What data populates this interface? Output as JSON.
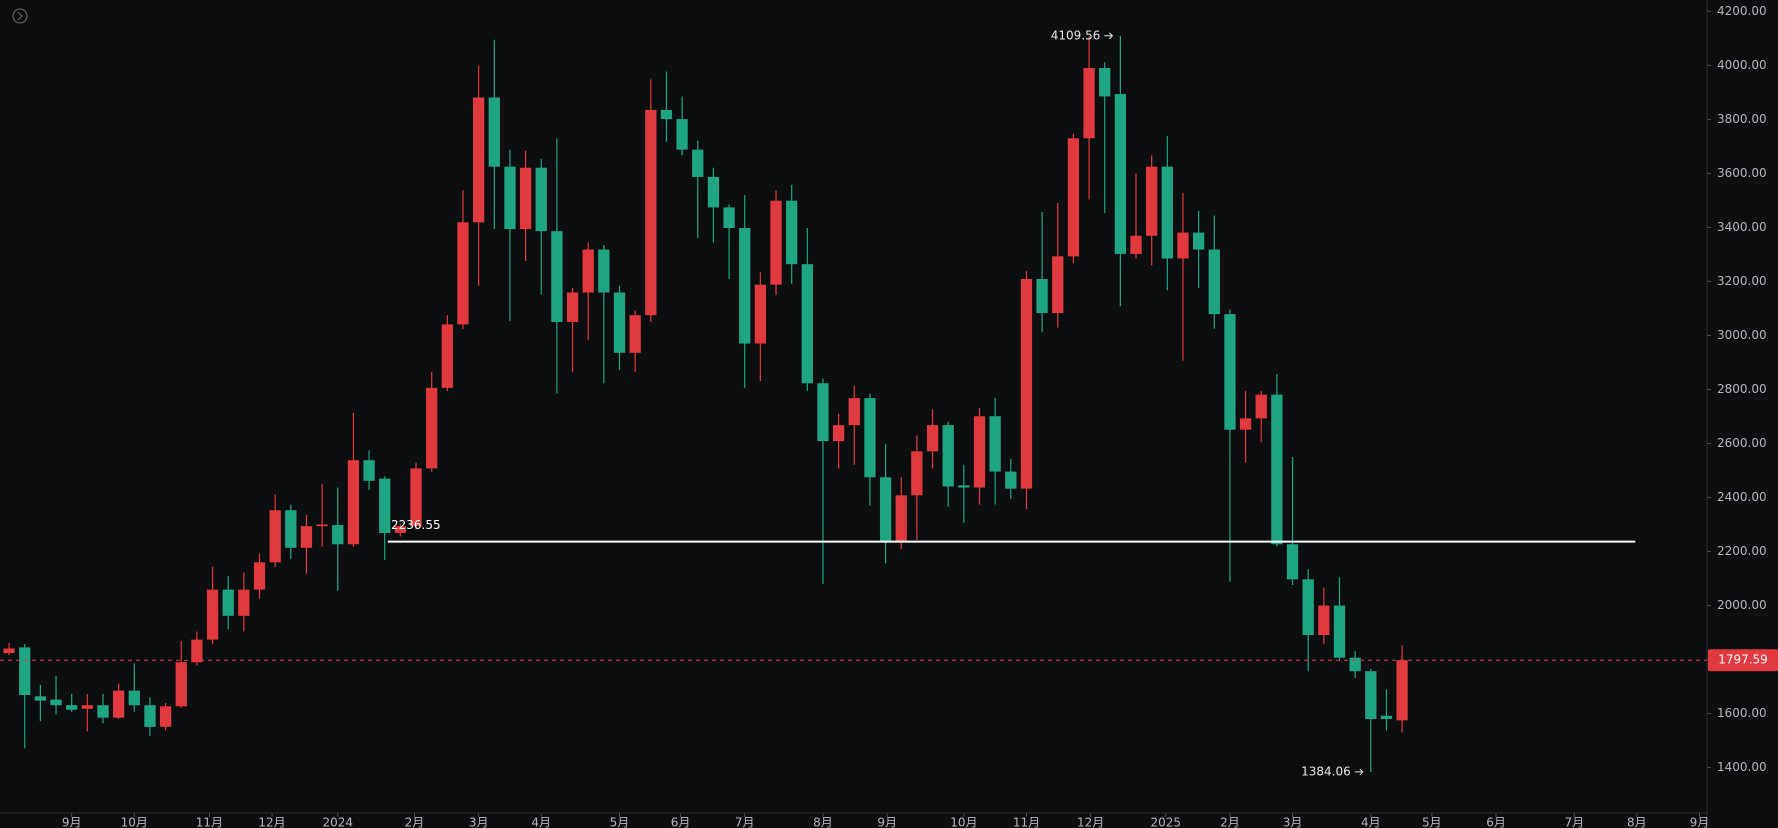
{
  "chart_data": {
    "type": "candlestick",
    "up_color": "#e0393f",
    "down_color": "#20a583",
    "open": [
      1824,
      1845,
      1664,
      1652,
      1631,
      1618,
      1631,
      1585,
      1685,
      1631,
      1551,
      1627,
      1790,
      1874,
      2059,
      1962,
      2059,
      2160,
      2353,
      2214,
      2294,
      2298,
      2227,
      2538,
      2470,
      2269,
      2294,
      2508,
      2806,
      3041,
      3419,
      3881,
      3625,
      3394,
      3621,
      3386,
      3050,
      3159,
      3318,
      3159,
      2936,
      3075,
      3835,
      3801,
      3688,
      3587,
      3474,
      3398,
      2970,
      3188,
      3499,
      3264,
      2823,
      2609,
      2668,
      2768,
      2475,
      2235,
      2408,
      2571,
      2668,
      2445,
      2437,
      2701,
      2496,
      2433,
      3209,
      3083,
      3293,
      3730,
      3990,
      3894,
      3302,
      3369,
      3625,
      3285,
      3381,
      3318,
      3079,
      2651,
      2693,
      2781,
      2227,
      2097,
      1891,
      2000,
      1807,
      1757,
      1592,
      1575
    ],
    "high": [
      1862,
      1858,
      1706,
      1740,
      1673,
      1673,
      1673,
      1711,
      1786,
      1660,
      1639,
      1870,
      1904,
      2143,
      2109,
      2122,
      2193,
      2412,
      2374,
      2336,
      2449,
      2437,
      2714,
      2575,
      2479,
      2303,
      2529,
      2865,
      3075,
      3537,
      3999,
      4095,
      3688,
      3684,
      3654,
      3730,
      3176,
      3344,
      3335,
      3184,
      3092,
      3948,
      3977,
      3885,
      3721,
      3621,
      3486,
      3520,
      3234,
      3537,
      3558,
      3398,
      2840,
      2710,
      2815,
      2785,
      2597,
      2475,
      2630,
      2727,
      2681,
      2521,
      2731,
      2769,
      2542,
      3238,
      3457,
      3491,
      3747,
      4108,
      4011,
      4109.56,
      3600,
      3667,
      3738,
      3528,
      3461,
      3444,
      3096,
      2794,
      2794,
      2857,
      2550,
      2135,
      2067,
      2105,
      1832,
      1765,
      1690,
      1853
    ],
    "low": [
      1816,
      1471,
      1572,
      1597,
      1606,
      1534,
      1564,
      1580,
      1606,
      1518,
      1538,
      1622,
      1778,
      1858,
      1912,
      1904,
      2025,
      2143,
      2172,
      2118,
      2218,
      2055,
      2218,
      2428,
      2168,
      2256,
      2282,
      2496,
      2794,
      3024,
      3184,
      3394,
      3054,
      3276,
      3151,
      2785,
      2865,
      2983,
      2823,
      2873,
      2865,
      3050,
      3717,
      3667,
      3360,
      3344,
      3209,
      2806,
      2831,
      3150,
      3192,
      2794,
      2080,
      2508,
      2521,
      2370,
      2156,
      2210,
      2244,
      2508,
      2366,
      2307,
      2374,
      2374,
      2395,
      2357,
      3012,
      3029,
      3268,
      3503,
      3453,
      3108,
      3285,
      3260,
      3167,
      2907,
      3176,
      3025,
      2088,
      2529,
      2605,
      2218,
      2076,
      1757,
      1858,
      1795,
      1732,
      1384.06,
      1538,
      1530
    ],
    "close": [
      1841,
      1669,
      1648,
      1631,
      1614,
      1631,
      1585,
      1685,
      1631,
      1551,
      1627,
      1790,
      1874,
      2059,
      1962,
      2059,
      2160,
      2353,
      2214,
      2294,
      2300,
      2227,
      2538,
      2462,
      2269,
      2294,
      2508,
      2806,
      3041,
      3419,
      3881,
      3625,
      3394,
      3621,
      3386,
      3050,
      3159,
      3318,
      3159,
      2936,
      3075,
      3835,
      3801,
      3688,
      3587,
      3474,
      3398,
      2970,
      3188,
      3499,
      3264,
      2823,
      2609,
      2668,
      2768,
      2475,
      2235,
      2408,
      2571,
      2668,
      2441,
      2437,
      2701,
      2496,
      2433,
      3209,
      3083,
      3293,
      3730,
      3990,
      3885,
      3302,
      3369,
      3625,
      3285,
      3381,
      3318,
      3079,
      2651,
      2693,
      2781,
      2227,
      2097,
      1891,
      2000,
      1807,
      1757,
      1580,
      1580,
      1797.59
    ],
    "xlim": [
      -0.58,
      108.48
    ],
    "xticks": [
      {
        "value": 4,
        "label": "9月"
      },
      {
        "value": 8,
        "label": "10月"
      },
      {
        "value": 12.8,
        "label": "11月"
      },
      {
        "value": 16.8,
        "label": "12月"
      },
      {
        "value": 21,
        "label": "2024"
      },
      {
        "value": 25.9,
        "label": "2月"
      },
      {
        "value": 30,
        "label": "3月"
      },
      {
        "value": 34,
        "label": "4月"
      },
      {
        "value": 39,
        "label": "5月"
      },
      {
        "value": 42.9,
        "label": "6月"
      },
      {
        "value": 47,
        "label": "7月"
      },
      {
        "value": 52,
        "label": "8月"
      },
      {
        "value": 56.1,
        "label": "9月"
      },
      {
        "value": 61,
        "label": "10月"
      },
      {
        "value": 65,
        "label": "11月"
      },
      {
        "value": 69.1,
        "label": "12月"
      },
      {
        "value": 73.9,
        "label": "2025"
      },
      {
        "value": 78,
        "label": "2月"
      },
      {
        "value": 82,
        "label": "3月"
      },
      {
        "value": 87,
        "label": "4月"
      },
      {
        "value": 90.9,
        "label": "5月"
      },
      {
        "value": 95,
        "label": "6月"
      },
      {
        "value": 100,
        "label": "7月"
      },
      {
        "value": 104,
        "label": "8月"
      },
      {
        "value": 108,
        "label": "9月"
      }
    ],
    "ylim": [
      1232,
      4242
    ],
    "yticks": [
      {
        "value": 1400,
        "label": "1400.00"
      },
      {
        "value": 1600,
        "label": "1600.00"
      },
      {
        "value": 1800,
        "label": "1800.00"
      },
      {
        "value": 2000,
        "label": "2000.00"
      },
      {
        "value": 2200,
        "label": "2200.00"
      },
      {
        "value": 2400,
        "label": "2400.00"
      },
      {
        "value": 2600,
        "label": "2600.00"
      },
      {
        "value": 2800,
        "label": "2800.00"
      },
      {
        "value": 3000,
        "label": "3000.00"
      },
      {
        "value": 3200,
        "label": "3200.00"
      },
      {
        "value": 3400,
        "label": "3400.00"
      },
      {
        "value": 3600,
        "label": "3600.00"
      },
      {
        "value": 3800,
        "label": "3800.00"
      },
      {
        "value": 4000,
        "label": "4000.00"
      },
      {
        "value": 4200,
        "label": "4200.00"
      }
    ],
    "horizontal_line": 2236.55,
    "last_price": 1797.59,
    "high_marker": 4109.56,
    "low_marker": 1384.06
  }
}
